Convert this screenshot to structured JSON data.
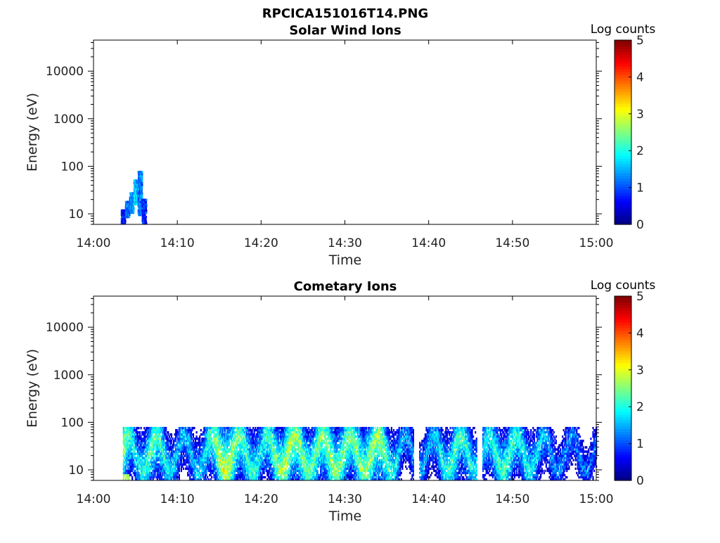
{
  "figure": {
    "title": "RPCICA151016T14.PNG"
  },
  "chart_data": [
    {
      "type": "heatmap",
      "title": "Solar Wind Ions",
      "xlabel": "Time",
      "ylabel": "Energy (eV)",
      "x_ticks": [
        "14:00",
        "14:10",
        "14:20",
        "14:30",
        "14:40",
        "14:50",
        "15:00"
      ],
      "x_range": [
        "14:00",
        "15:00"
      ],
      "y_scale": "log",
      "y_range": [
        6,
        45000
      ],
      "y_ticks": [
        10,
        100,
        1000,
        10000
      ],
      "y_tick_labels": [
        "10",
        "100",
        "1000",
        "10000"
      ],
      "colorbar": {
        "label": "Log counts",
        "range": [
          0,
          5
        ],
        "ticks": [
          "0",
          "1",
          "2",
          "3",
          "4",
          "5"
        ],
        "colormap": "jet"
      },
      "data_description_cells": [
        {
          "t": "14:03.5",
          "e_min": 6,
          "e_max": 12,
          "v": 0.7
        },
        {
          "t": "14:04.0",
          "e_min": 8,
          "e_max": 18,
          "v": 1.1
        },
        {
          "t": "14:04.5",
          "e_min": 10,
          "e_max": 28,
          "v": 1.3
        },
        {
          "t": "14:05.0",
          "e_min": 15,
          "e_max": 50,
          "v": 1.6
        },
        {
          "t": "14:05.5",
          "e_min": 9,
          "e_max": 78,
          "v": 1.2
        },
        {
          "t": "14:06.0",
          "e_min": 6,
          "e_max": 20,
          "v": 0.8
        }
      ]
    },
    {
      "type": "heatmap",
      "title": "Cometary Ions",
      "xlabel": "Time",
      "ylabel": "Energy (eV)",
      "x_ticks": [
        "14:00",
        "14:10",
        "14:20",
        "14:30",
        "14:40",
        "14:50",
        "15:00"
      ],
      "x_range": [
        "14:00",
        "15:00"
      ],
      "y_scale": "log",
      "y_range": [
        6,
        45000
      ],
      "y_ticks": [
        10,
        100,
        1000,
        10000
      ],
      "y_tick_labels": [
        "10",
        "100",
        "1000",
        "10000"
      ],
      "colorbar": {
        "label": "Log counts",
        "range": [
          0,
          5
        ],
        "ticks": [
          "0",
          "1",
          "2",
          "3",
          "4",
          "5"
        ],
        "colormap": "jet"
      },
      "activity_start": "14:03.5",
      "activity_end": "15:00",
      "energy_band": [
        6,
        80
      ],
      "intensity_profile": [
        {
          "t": "14:03.5",
          "v": 2.8
        },
        {
          "t": "14:05",
          "v": 1.8
        },
        {
          "t": "14:07",
          "v": 2.5
        },
        {
          "t": "14:10",
          "v": 1.6
        },
        {
          "t": "14:13",
          "v": 1.8
        },
        {
          "t": "14:15.5",
          "v": 3.1
        },
        {
          "t": "14:18",
          "v": 2.3
        },
        {
          "t": "14:20",
          "v": 2.0
        },
        {
          "t": "14:23",
          "v": 2.9
        },
        {
          "t": "14:26",
          "v": 2.4
        },
        {
          "t": "14:28",
          "v": 2.7
        },
        {
          "t": "14:31",
          "v": 2.5
        },
        {
          "t": "14:34",
          "v": 2.8
        },
        {
          "t": "14:37",
          "v": 1.5
        },
        {
          "t": "14:40",
          "v": 1.6
        },
        {
          "t": "14:43",
          "v": 2.4
        },
        {
          "t": "14:46",
          "v": 1.9
        },
        {
          "t": "14:49",
          "v": 2.3
        },
        {
          "t": "14:52",
          "v": 2.0
        },
        {
          "t": "14:55",
          "v": 1.4
        },
        {
          "t": "14:58",
          "v": 1.3
        },
        {
          "t": "15:00",
          "v": 1.2
        }
      ],
      "gaps": [
        "14:38.5",
        "14:46"
      ]
    }
  ]
}
